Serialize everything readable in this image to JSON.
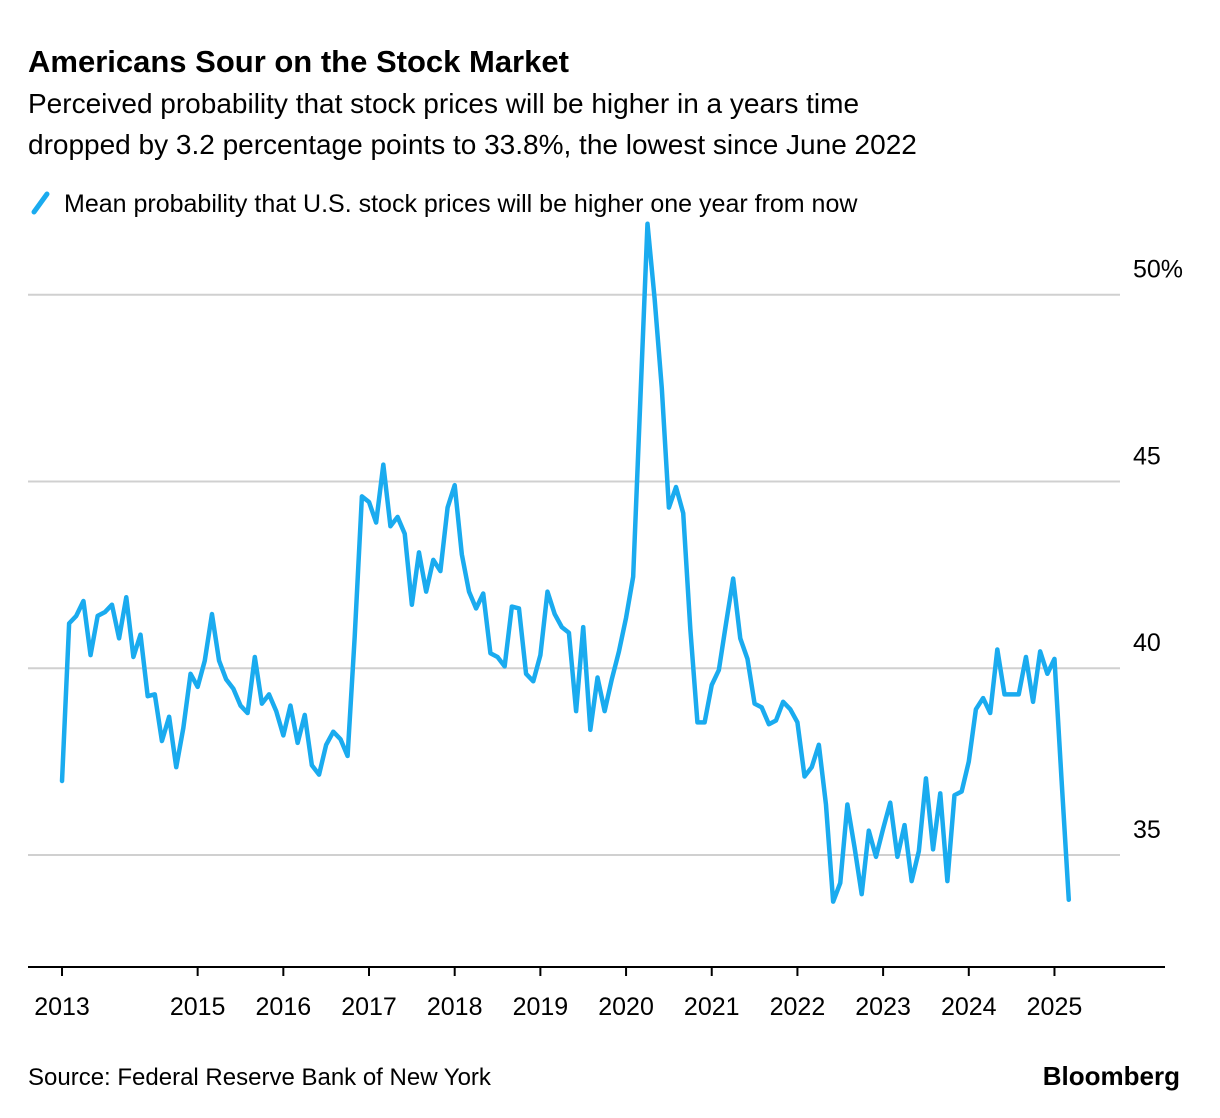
{
  "chart_data": {
    "type": "line",
    "title": "Americans Sour on the Stock Market",
    "subtitle": [
      "Perceived probability that stock prices will be higher in a years time",
      "dropped by 3.2 percentage points to 33.8%, the lowest since June 2022"
    ],
    "source": "Source: Federal Reserve Bank of New York",
    "brand": "Bloomberg",
    "x": [
      2013.417,
      2013.5,
      2013.583,
      2013.667,
      2013.75,
      2013.833,
      2013.917,
      2014,
      2014.083,
      2014.167,
      2014.25,
      2014.333,
      2014.417,
      2014.5,
      2014.583,
      2014.667,
      2014.75,
      2014.833,
      2014.917,
      2015,
      2015.083,
      2015.167,
      2015.25,
      2015.333,
      2015.417,
      2015.5,
      2015.583,
      2015.667,
      2015.75,
      2015.833,
      2015.917,
      2016,
      2016.083,
      2016.167,
      2016.25,
      2016.333,
      2016.417,
      2016.5,
      2016.583,
      2016.667,
      2016.75,
      2016.833,
      2016.917,
      2017,
      2017.083,
      2017.167,
      2017.25,
      2017.333,
      2017.417,
      2017.5,
      2017.583,
      2017.667,
      2017.75,
      2017.833,
      2017.917,
      2018,
      2018.083,
      2018.167,
      2018.25,
      2018.333,
      2018.417,
      2018.5,
      2018.583,
      2018.667,
      2018.75,
      2018.833,
      2018.917,
      2019,
      2019.083,
      2019.167,
      2019.25,
      2019.333,
      2019.417,
      2019.5,
      2019.583,
      2019.667,
      2019.75,
      2019.833,
      2019.917,
      2020,
      2020.083,
      2020.167,
      2020.25,
      2020.333,
      2020.417,
      2020.5,
      2020.583,
      2020.667,
      2020.75,
      2020.833,
      2020.917,
      2021,
      2021.083,
      2021.167,
      2021.25,
      2021.333,
      2021.417,
      2021.5,
      2021.583,
      2021.667,
      2021.75,
      2021.833,
      2021.917,
      2022,
      2022.083,
      2022.167,
      2022.25,
      2022.333,
      2022.417,
      2022.5,
      2022.583,
      2022.667,
      2022.75,
      2022.833,
      2022.917,
      2023,
      2023.083,
      2023.167,
      2023.25,
      2023.333,
      2023.417,
      2023.5,
      2023.583,
      2023.667,
      2023.75,
      2023.833,
      2023.917,
      2024,
      2024.083,
      2024.167,
      2024.25,
      2024.333,
      2024.417,
      2024.5,
      2024.583,
      2024.667,
      2024.75,
      2024.833,
      2024.917,
      2025,
      2025.083,
      2025.167
    ],
    "series": [
      {
        "name": "Mean probability that U.S. stock prices will be higher one year from now",
        "color": "#1aabef",
        "values": [
          36.98,
          41.2,
          41.4,
          41.8,
          40.35,
          41.4,
          41.5,
          41.7,
          40.8,
          41.9,
          40.3,
          40.9,
          39.25,
          39.3,
          38.05,
          38.7,
          37.35,
          38.4,
          39.85,
          39.5,
          40.2,
          41.45,
          40.2,
          39.7,
          39.45,
          39.0,
          38.8,
          40.3,
          39.05,
          39.3,
          38.85,
          38.2,
          39.0,
          38.0,
          38.75,
          37.4,
          37.15,
          37.95,
          38.3,
          38.1,
          37.65,
          40.85,
          44.6,
          44.45,
          43.9,
          45.45,
          43.8,
          44.05,
          43.6,
          41.7,
          43.1,
          42.05,
          42.9,
          42.6,
          44.3,
          44.9,
          43.05,
          42.05,
          41.6,
          42.0,
          40.4,
          40.3,
          40.05,
          41.65,
          41.6,
          39.85,
          39.65,
          40.35,
          42.05,
          41.45,
          41.1,
          40.95,
          38.85,
          41.1,
          38.35,
          39.75,
          38.85,
          39.7,
          40.45,
          41.35,
          42.45,
          47.2,
          51.9,
          49.9,
          47.5,
          44.3,
          44.85,
          44.15,
          41.05,
          38.55,
          38.55,
          39.55,
          39.95,
          41.2,
          42.4,
          40.8,
          40.25,
          39.05,
          38.95,
          38.5,
          38.6,
          39.1,
          38.9,
          38.55,
          37.1,
          37.35,
          37.95,
          36.35,
          33.75,
          34.25,
          36.35,
          35.2,
          33.95,
          35.65,
          34.95,
          35.7,
          36.4,
          34.95,
          35.8,
          34.3,
          35.1,
          37.05,
          35.15,
          36.65,
          34.3,
          36.6,
          36.7,
          37.5,
          38.9,
          39.2,
          38.8,
          40.5,
          39.3,
          39.3,
          39.3,
          40.3,
          39.1,
          40.45,
          39.85,
          40.25,
          37.0,
          33.8
        ]
      }
    ],
    "xlim": [
      2013.02,
      2026.29
    ],
    "xticks": [
      {
        "value": 2013.417,
        "label": "2013"
      },
      2015,
      2016,
      2017,
      2018,
      2019,
      2020,
      2021,
      2022,
      2023,
      2024,
      2025
    ],
    "ylim": [
      32,
      52
    ],
    "yticks": [
      35,
      40,
      45,
      {
        "value": 50,
        "label": "50%"
      }
    ],
    "grid": true
  }
}
